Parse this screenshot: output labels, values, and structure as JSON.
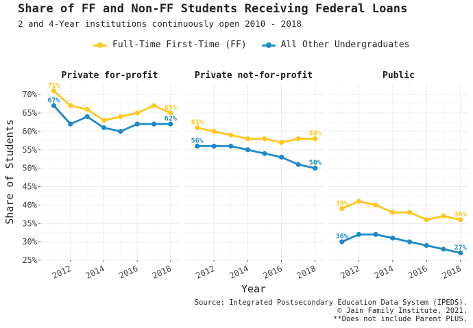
{
  "title": "Share of FF and Non-FF Students Receiving Federal Loans",
  "subtitle": "2 and 4-Year institutions continuously open 2010 - 2018",
  "caption": [
    "Source: Integrated Postsecondary Education Data System (IPEDS).",
    "© Jain Family Institute, 2021.",
    "**Does not include Parent PLUS."
  ],
  "colors": {
    "ff": "#FFC61E",
    "other": "#1B8AC8",
    "grid": "#EBEBEB",
    "strip_bg": "#FFFFFF"
  },
  "chart_data": {
    "type": "line",
    "xlabel": "Year",
    "ylabel": "Share of Students",
    "ylim": [
      25,
      73
    ],
    "yticks": [
      25,
      30,
      35,
      40,
      45,
      50,
      55,
      60,
      65,
      70
    ],
    "ytick_labels": [
      "25%",
      "30%",
      "35%",
      "40%",
      "45%",
      "50%",
      "55%",
      "60%",
      "65%",
      "70%"
    ],
    "xlim": [
      2010.2,
      2018.5
    ],
    "xticks": [
      2012,
      2014,
      2016,
      2018
    ],
    "xtick_labels": [
      "2012",
      "2014",
      "2016",
      "2018"
    ],
    "grid": true,
    "legend_position": "top",
    "series_names": [
      "Full-Time First-Time (FF)",
      "All Other Undergraduates"
    ],
    "x": [
      2011,
      2012,
      2013,
      2014,
      2015,
      2016,
      2017,
      2018
    ],
    "panels": [
      {
        "name": "Private for-profit",
        "series": [
          {
            "name": "Full-Time First-Time (FF)",
            "values": [
              71,
              67,
              66,
              63,
              64,
              65,
              67,
              65
            ],
            "first_label": "71%",
            "last_label": "65%"
          },
          {
            "name": "All Other Undergraduates",
            "values": [
              67,
              62,
              64,
              61,
              60,
              62,
              62,
              62
            ],
            "first_label": "67%",
            "last_label": "62%"
          }
        ]
      },
      {
        "name": "Private not-for-profit",
        "series": [
          {
            "name": "Full-Time First-Time (FF)",
            "values": [
              61,
              60,
              59,
              58,
              58,
              57,
              58,
              58
            ],
            "first_label": "61%",
            "last_label": "58%"
          },
          {
            "name": "All Other Undergraduates",
            "values": [
              56,
              56,
              56,
              55,
              54,
              53,
              51,
              50
            ],
            "first_label": "56%",
            "last_label": "50%"
          }
        ]
      },
      {
        "name": "Public",
        "series": [
          {
            "name": "Full-Time First-Time (FF)",
            "values": [
              39,
              41,
              40,
              38,
              38,
              36,
              37,
              36
            ],
            "first_label": "39%",
            "last_label": "36%"
          },
          {
            "name": "All Other Undergraduates",
            "values": [
              30,
              32,
              32,
              31,
              30,
              29,
              28,
              27
            ],
            "first_label": "30%",
            "last_label": "27%"
          }
        ]
      }
    ]
  }
}
